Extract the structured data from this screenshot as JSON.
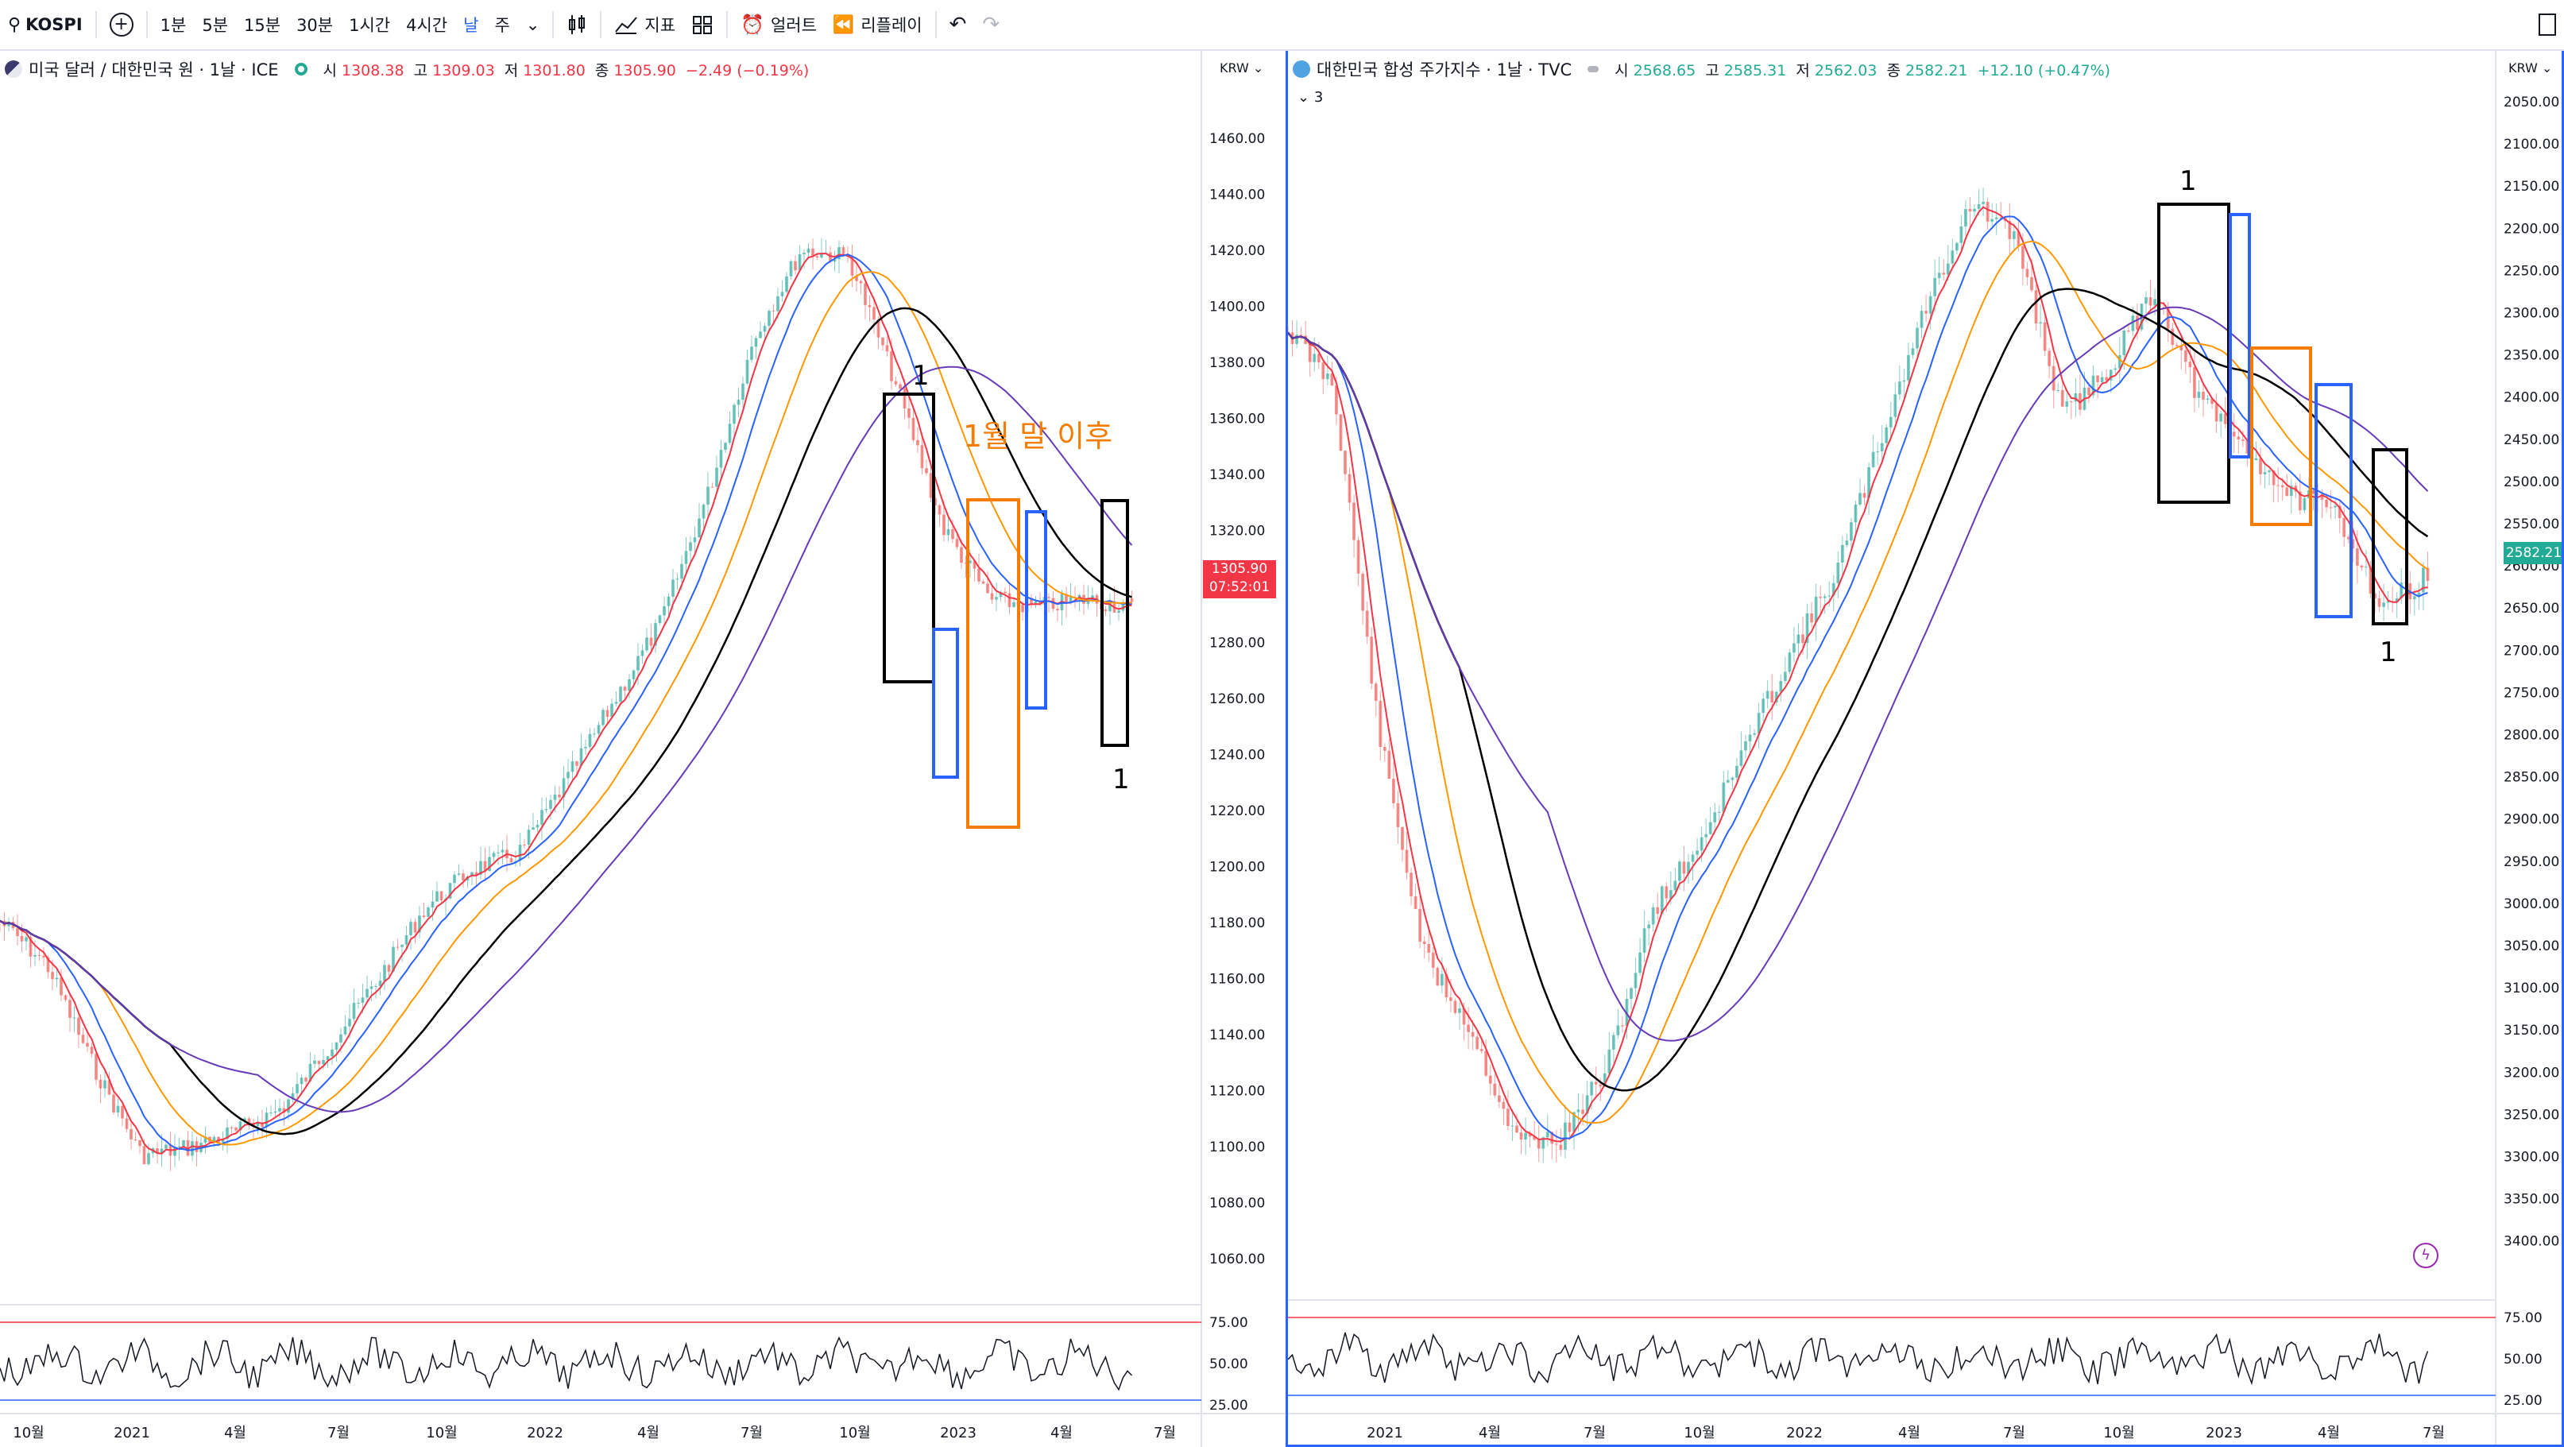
{
  "toolbar": {
    "symbol": "KOSPI",
    "intervals": [
      "1분",
      "5분",
      "15분",
      "30분",
      "1시간",
      "4시간",
      "날",
      "주"
    ],
    "indicators_label": "지표",
    "alert_label": "얼러트",
    "replay_label": "리플레이"
  },
  "left": {
    "title": "미국 달러 / 대한민국 원 · 1날 · ICE",
    "open_label": "시",
    "open": "1308.38",
    "high_label": "고",
    "high": "1309.03",
    "low_label": "저",
    "low": "1301.80",
    "close_label": "종",
    "close": "1305.90",
    "change": "−2.49 (−0.19%)",
    "currency": "KRW",
    "price_tag": "1305.90",
    "time_tag": "07:52:01",
    "price_ticks": [
      "1460.00",
      "1440.00",
      "1420.00",
      "1400.00",
      "1380.00",
      "1360.00",
      "1340.00",
      "1320.00",
      "1300.00",
      "1280.00",
      "1260.00",
      "1240.00",
      "1220.00",
      "1200.00",
      "1180.00",
      "1160.00",
      "1140.00",
      "1120.00",
      "1100.00",
      "1080.00",
      "1060.00"
    ],
    "rsi_ticks": [
      "75.00",
      "50.00",
      "25.00"
    ],
    "time_ticks": [
      "10월",
      "2021",
      "4월",
      "7월",
      "10월",
      "2022",
      "4월",
      "7월",
      "10월",
      "2023",
      "4월",
      "7월"
    ],
    "annotation": "1월 말 이후",
    "box_labels": [
      "1",
      "1"
    ]
  },
  "right": {
    "title": "대한민국 합성 주가지수 · 1날 · TVC",
    "open_label": "시",
    "open": "2568.65",
    "high_label": "고",
    "high": "2585.31",
    "low_label": "저",
    "low": "2562.03",
    "close_label": "종",
    "close": "2582.21",
    "change": "+12.10 (+0.47%)",
    "indicator_count": "3",
    "currency": "KRW",
    "price_tag": "2582.21",
    "price_ticks": [
      "2050.00",
      "2100.00",
      "2150.00",
      "2200.00",
      "2250.00",
      "2300.00",
      "2350.00",
      "2400.00",
      "2450.00",
      "2500.00",
      "2550.00",
      "2600.00",
      "2650.00",
      "2700.00",
      "2750.00",
      "2800.00",
      "2850.00",
      "2900.00",
      "2950.00",
      "3000.00",
      "3050.00",
      "3100.00",
      "3150.00",
      "3200.00",
      "3250.00",
      "3300.00",
      "3350.00",
      "3400.00"
    ],
    "rsi_ticks": [
      "75.00",
      "50.00",
      "25.00"
    ],
    "time_ticks": [
      "2021",
      "4월",
      "7월",
      "10월",
      "2022",
      "4월",
      "7월",
      "10월",
      "2023",
      "4월",
      "7월"
    ],
    "box_labels": [
      "1",
      "1"
    ]
  },
  "colors": {
    "up": "#26a69a",
    "down": "#ef5350",
    "ma_red": "#f23645",
    "ma_blue": "#2962ff",
    "ma_orange": "#ff9800",
    "ma_black": "#000000",
    "ma_purple": "#673ab7",
    "box_orange": "#f57c00"
  }
}
